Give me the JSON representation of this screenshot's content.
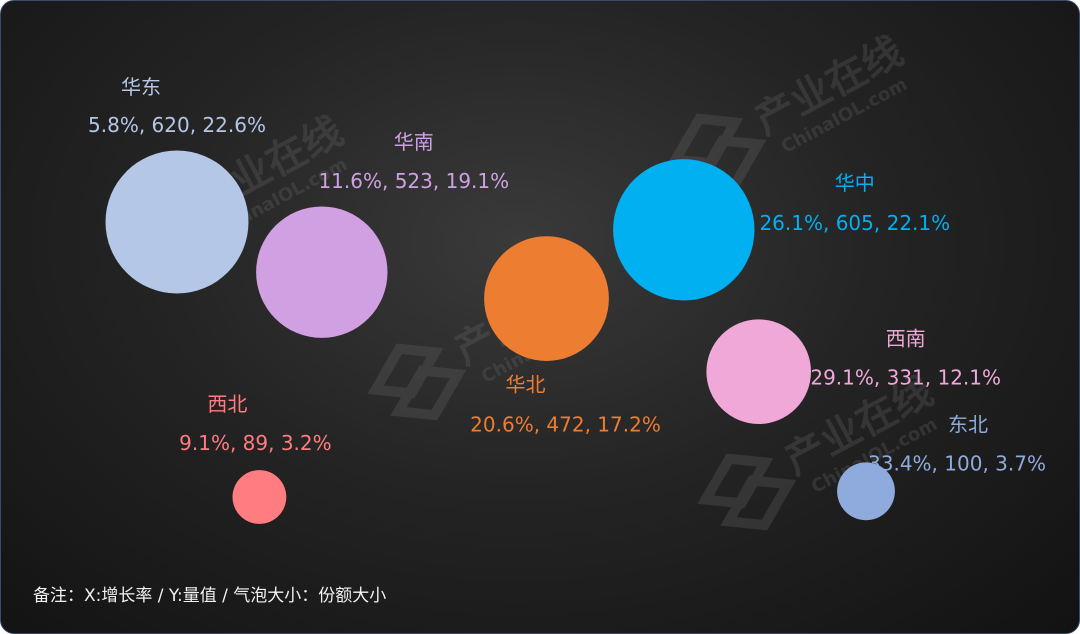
{
  "chart_data": {
    "type": "bubble",
    "x_measure": "增长率",
    "y_measure": "量值",
    "size_measure": "份额大小",
    "points": [
      {
        "name": "华东",
        "x": 5.8,
        "y": 620,
        "share": 22.6,
        "label": "5.8%, 620, 22.6%",
        "color": "#b4c7e7"
      },
      {
        "name": "华南",
        "x": 11.6,
        "y": 523,
        "share": 19.1,
        "label": "11.6%, 523, 19.1%",
        "color": "#d0a0e2"
      },
      {
        "name": "华北",
        "x": 20.6,
        "y": 472,
        "share": 17.2,
        "label": "20.6%, 472, 17.2%",
        "color": "#ed7d31"
      },
      {
        "name": "华中",
        "x": 26.1,
        "y": 605,
        "share": 22.1,
        "label": "26.1%, 605, 22.1%",
        "color": "#00b0f0"
      },
      {
        "name": "西南",
        "x": 29.1,
        "y": 331,
        "share": 12.1,
        "label": "29.1%, 331, 12.1%",
        "color": "#f0a8d8"
      },
      {
        "name": "西北",
        "x": 9.1,
        "y": 89,
        "share": 3.2,
        "label": "9.1%, 89, 3.2%",
        "color": "#ff7c80"
      },
      {
        "name": "东北",
        "x": 33.4,
        "y": 100,
        "share": 3.7,
        "label": "33.4%, 100, 3.7%",
        "color": "#8faadc"
      }
    ],
    "legend": "none",
    "grid": false
  },
  "watermark": {
    "text": "产业在线",
    "subtext": "ChinaIOL.com",
    "color": "#6a6a6a"
  },
  "footnote": {
    "text": "备注：X:增长率 / Y:量值 / 气泡大小：份额大小"
  }
}
